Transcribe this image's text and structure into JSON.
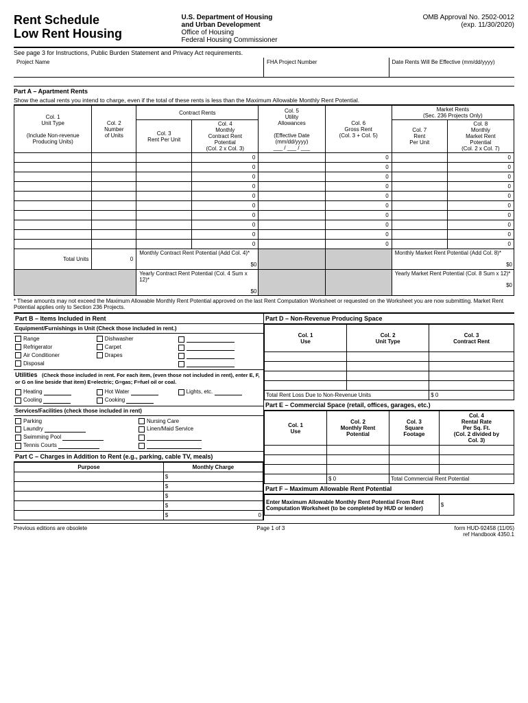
{
  "header": {
    "title1": "Rent Schedule",
    "title2": "Low Rent Housing",
    "dept1": "U.S. Department of Housing",
    "dept2": "and Urban Development",
    "dept3": "Office of Housing",
    "dept4": "Federal Housing Commissioner",
    "omb": "OMB Approval No. 2502-0012",
    "exp": "(exp. 11/30/2020)",
    "instructions": "See page 3 for Instructions, Public Burden Statement and Privacy Act requirements.",
    "meta1": "Project Name",
    "meta2": "FHA Project Number",
    "meta3": "Date Rents Will Be Effective (mm/dd/yyyy)"
  },
  "partA": {
    "title": "Part A – Apartment Rents",
    "desc": "Show the actual rents you intend to charge, even if the total of these rents is less than the Maximum Allowable Monthly Rent Potential.",
    "cols": {
      "c1a": "Col. 1",
      "c1b": "Unit Type",
      "c1c": "(Include Non-revenue",
      "c1d": "Producing Units)",
      "c2a": "Col. 2",
      "c2b": "Number",
      "c2c": "of Units",
      "contract": "Contract Rents",
      "c3a": "Col. 3",
      "c3b": "Rent Per Unit",
      "c4a": "Col. 4",
      "c4b": "Monthly",
      "c4c": "Contract Rent",
      "c4d": "Potential",
      "c4e": "(Col. 2 x Col. 3)",
      "c5a": "Col. 5",
      "c5b": "Utility",
      "c5c": "Allowances",
      "c5d": "(Effective Date",
      "c5e": "(mm/dd/yyyy)",
      "c5f": "___ / ___ / ___",
      "c6a": "Col. 6",
      "c6b": "Gross Rent",
      "c6c": "(Col. 3 + Col. 5)",
      "market": "Market Rents",
      "market2": "(Sec. 236 Projects Only)",
      "c7a": "Col. 7",
      "c7b": "Rent",
      "c7c": "Per Unit",
      "c8a": "Col. 8",
      "c8b": "Monthly",
      "c8c": "Market Rent",
      "c8d": "Potential",
      "c8e": "(Col. 2 x Col. 7)"
    },
    "zero": "0",
    "totalUnits": "Total Units",
    "mcrpLabel": "Monthly Contract Rent Potential (Add Col. 4)*",
    "ycrpLabel": "Yearly Contract Rent Potential (Col. 4 Sum x 12)*",
    "mmrpLabel": "Monthly Market Rent Potential (Add Col. 8)*",
    "ymrpLabel": "Yearly Market Rent Potential (Col. 8 Sum x 12)*",
    "dollarZero": "$0",
    "footnote": "* These amounts may not exceed the Maximum Allowable Monthly Rent Potential approved on the last Rent Computation Worksheet or requested on the Worksheet you are now submitting. Market Rent Potential applies only to Section 236 Projects."
  },
  "partB": {
    "title": "Part B – Items Included in Rent",
    "equip": "Equipment/Furnishings in Unit (Check those included in rent.)",
    "items": [
      "Range",
      "Refrigerator",
      "Air Conditioner",
      "Disposal",
      "Dishwasher",
      "Carpet",
      "Drapes"
    ],
    "utilTitle": "Utilities",
    "utilNote": "(Check those included in rent. For each item, (even those not included in rent), enter E, F, or G on line beside that item) E=electric; G=gas; F=fuel oil or coal.",
    "utilItems": [
      "Heating",
      "Cooling",
      "Hot Water",
      "Cooking",
      "Lights, etc."
    ],
    "servTitle": "Services/Facilities (check those included in rent)",
    "servItems": [
      "Parking",
      "Laundry",
      "Swimming Pool",
      "Tennis Courts",
      "Nursing Care",
      "Linen/Maid Service"
    ]
  },
  "partC": {
    "title": "Part C – Charges in Addition to Rent (e.g., parking, cable TV, meals)",
    "purpose": "Purpose",
    "charge": "Monthly Charge",
    "dollar": "$",
    "dollarZero": "0"
  },
  "partD": {
    "title": "Part D – Non-Revenue Producing Space",
    "c1": "Col. 1\nUse",
    "c2": "Col. 2\nUnit Type",
    "c3": "Col. 3\nContract Rent",
    "lossLabel": "Total Rent Loss Due to Non-Revenue Units",
    "lossVal": "$           0"
  },
  "partE": {
    "title": "Part E – Commercial Space (retail, offices, garages, etc.)",
    "c1": "Col. 1\nUse",
    "c2": "Col. 2\nMonthly Rent\nPotential",
    "c3": "Col. 3\nSquare\nFootage",
    "c4": "Col. 4\nRental Rate\nPer Sq. Ft.\n(Col. 2 divided by\nCol. 3)",
    "totalLabel": "Total Commercial Rent Potential",
    "dollarZero": "$           0"
  },
  "partF": {
    "title": "Part F – Maximum Allowable Rent Potential",
    "label": "Enter Maximum Allowable Monthly Rent Potential From Rent Computation Worksheet (to be completed by HUD or lender)",
    "dollar": "$"
  },
  "footer": {
    "left": "Previous editions are obsolete",
    "center": "Page 1 of 3",
    "right1": "form HUD-92458  (11/05)",
    "right2": "ref Handbook 4350.1"
  }
}
